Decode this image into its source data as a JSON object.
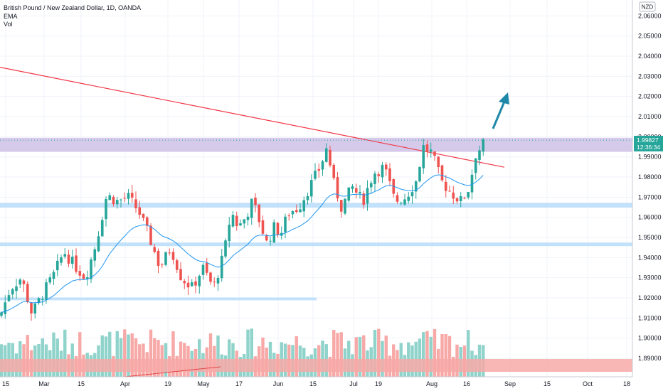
{
  "header": {
    "symbol_line": "British Pound / New Zealand Dollar, 1D, OANDA",
    "indicator_1": "EMA",
    "indicator_2": "Vol"
  },
  "currency_badge": "NZD",
  "price_label": {
    "price": "1.99827",
    "countdown": "12:36:34"
  },
  "colors": {
    "up": "#26a69a",
    "down": "#ef5350",
    "trendline": "#f23645",
    "ema": "#2196f3",
    "zone_resistance": "#d1c4e9",
    "zone_support": "#bbdefb",
    "arrow": "#1e88a8",
    "vol_up": "#8fd3cb",
    "vol_down": "#f7a9a7",
    "price_label_bg": "#26a69a"
  },
  "chart_data": {
    "type": "candlestick",
    "y_axis": {
      "min": 1.885,
      "max": 2.066,
      "ticks": [
        "2.06000",
        "2.05000",
        "2.04000",
        "2.03000",
        "2.02000",
        "2.01000",
        "2.00000",
        "1.99000",
        "1.98000",
        "1.97000",
        "1.96000",
        "1.95000",
        "1.94000",
        "1.93000",
        "1.92000",
        "1.91000",
        "1.90000",
        "1.89000"
      ]
    },
    "x_axis": {
      "ticks": [
        "15",
        "Mar",
        "15",
        "Apr",
        "19",
        "May",
        "17",
        "Jun",
        "15",
        "Jul",
        "19",
        "Aug",
        "16",
        "Sep",
        "15",
        "Oct",
        "18"
      ]
    },
    "last_price": 1.99827,
    "zones": [
      {
        "name": "resistance",
        "from": 1.9925,
        "to": 1.9995
      },
      {
        "name": "support-1",
        "from": 1.9648,
        "to": 1.9672
      },
      {
        "name": "support-2",
        "from": 1.9457,
        "to": 1.9475
      },
      {
        "name": "support-3",
        "from": 1.9188,
        "to": 1.9202
      }
    ],
    "trendline": [
      [
        0,
        2.0345
      ],
      [
        709,
        1.9849
      ]
    ]
  }
}
